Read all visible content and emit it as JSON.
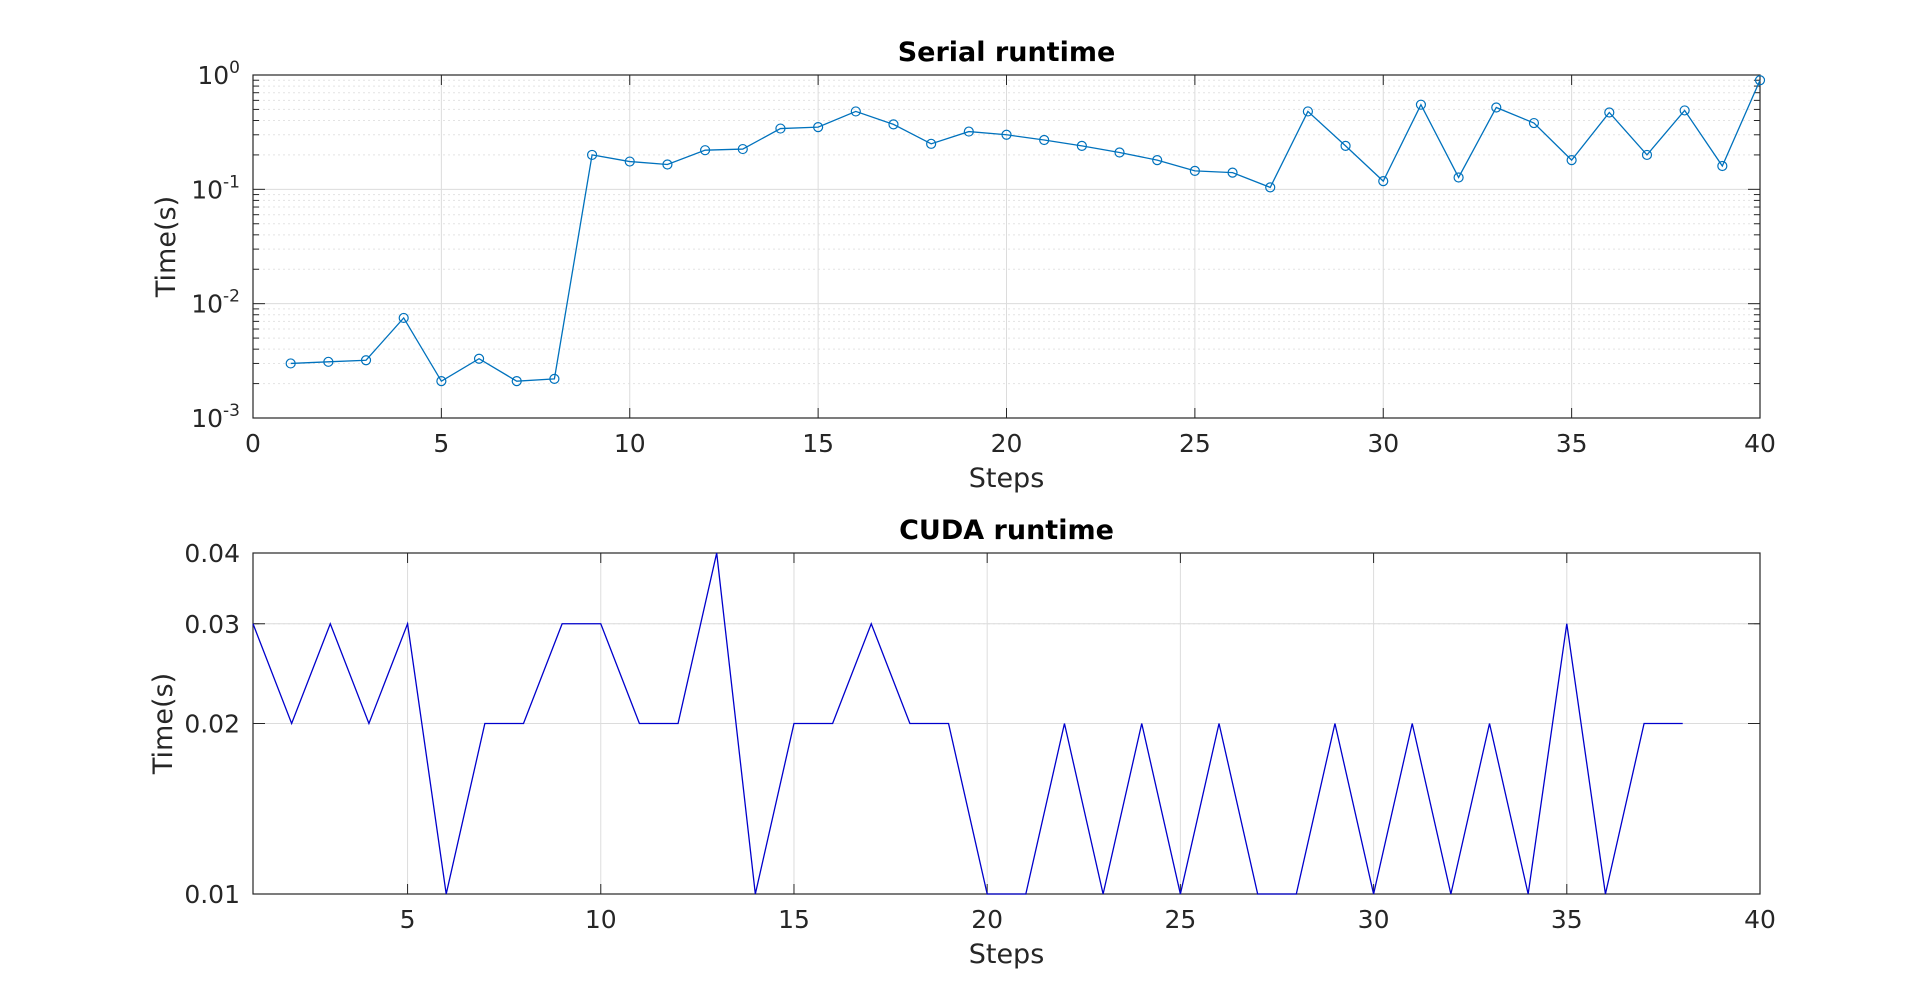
{
  "chart_data": [
    {
      "type": "line",
      "title": "Serial runtime",
      "xlabel": "Steps",
      "ylabel": "Time(s)",
      "xlim": [
        0,
        40
      ],
      "ylim": [
        0.001,
        1
      ],
      "yscale": "log",
      "grid": true,
      "minor_grid": true,
      "marker": "circle",
      "color": "#0072BD",
      "xticks": [
        0,
        5,
        10,
        15,
        20,
        25,
        30,
        35,
        40
      ],
      "yticks": [
        {
          "value": 0.001,
          "base": "10",
          "exponent": "-3"
        },
        {
          "value": 0.01,
          "base": "10",
          "exponent": "-2"
        },
        {
          "value": 0.1,
          "base": "10",
          "exponent": "-1"
        },
        {
          "value": 1,
          "base": "10",
          "exponent": "0"
        }
      ],
      "x": [
        1,
        2,
        3,
        4,
        5,
        6,
        7,
        8,
        9,
        10,
        11,
        12,
        13,
        14,
        15,
        16,
        17,
        18,
        19,
        20,
        21,
        22,
        23,
        24,
        25,
        26,
        27,
        28,
        29,
        30,
        31,
        32,
        33,
        34,
        35,
        36,
        37,
        38,
        39,
        40
      ],
      "y": [
        0.003,
        0.0031,
        0.0032,
        0.0075,
        0.0021,
        0.0033,
        0.0021,
        0.0022,
        0.2,
        0.175,
        0.165,
        0.22,
        0.225,
        0.34,
        0.35,
        0.48,
        0.37,
        0.25,
        0.32,
        0.3,
        0.27,
        0.24,
        0.21,
        0.18,
        0.145,
        0.14,
        0.104,
        0.48,
        0.24,
        0.118,
        0.55,
        0.127,
        0.52,
        0.38,
        0.18,
        0.47,
        0.2,
        0.49,
        0.16,
        0.9
      ]
    },
    {
      "type": "line",
      "title": "CUDA runtime",
      "xlabel": "Steps",
      "ylabel": "Time(s)",
      "xlim": [
        1,
        40
      ],
      "ylim": [
        0.01,
        0.04
      ],
      "yscale": "log",
      "grid": true,
      "minor_grid": true,
      "marker": "none",
      "color": "#0000CC",
      "xticks": [
        5,
        10,
        15,
        20,
        25,
        30,
        35,
        40
      ],
      "yticks": [
        {
          "value": 0.01,
          "label": "0.01"
        },
        {
          "value": 0.02,
          "label": "0.02"
        },
        {
          "value": 0.03,
          "label": "0.03"
        },
        {
          "value": 0.04,
          "label": "0.04"
        }
      ],
      "x": [
        1,
        2,
        3,
        4,
        5,
        6,
        7,
        8,
        9,
        10,
        11,
        12,
        13,
        14,
        15,
        16,
        17,
        18,
        19,
        20,
        21,
        22,
        23,
        24,
        25,
        26,
        27,
        28,
        29,
        30,
        31,
        32,
        33,
        34,
        35,
        36,
        37,
        38
      ],
      "y": [
        0.03,
        0.02,
        0.03,
        0.02,
        0.03,
        0.01,
        0.02,
        0.02,
        0.03,
        0.03,
        0.02,
        0.02,
        0.04,
        0.01,
        0.02,
        0.02,
        0.03,
        0.02,
        0.02,
        0.01,
        0.01,
        0.02,
        0.01,
        0.02,
        0.01,
        0.02,
        0.01,
        0.01,
        0.02,
        0.01,
        0.02,
        0.01,
        0.02,
        0.01,
        0.03,
        0.01,
        0.02,
        0.02
      ]
    }
  ]
}
